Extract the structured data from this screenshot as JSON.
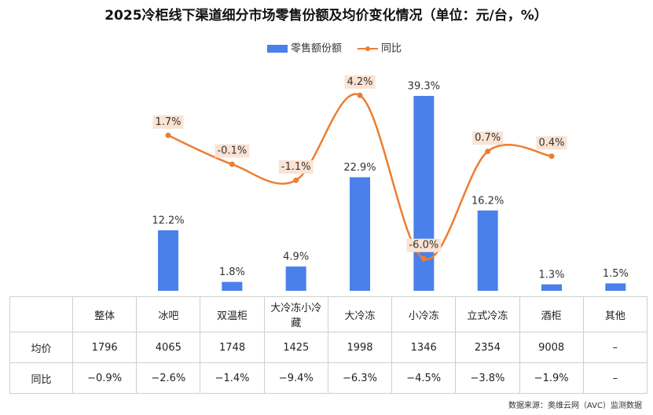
{
  "chart_data": {
    "type": "bar",
    "title": "2025冷柜线下渠道细分市场零售份额及均价变化情况（单位：元/台，%）",
    "categories": [
      "整体",
      "冰吧",
      "双温柜",
      "大冷冻小冷藏",
      "大冷冻",
      "小冷冻",
      "立式冷冻",
      "酒柜",
      "其他"
    ],
    "series": [
      {
        "name": "零售额份额",
        "color": "#4a80ea",
        "values": [
          null,
          12.2,
          1.8,
          4.9,
          22.9,
          39.3,
          16.2,
          1.3,
          1.5
        ],
        "value_labels": [
          null,
          "12.2%",
          "1.8%",
          "4.9%",
          "22.9%",
          "39.3%",
          "16.2%",
          "1.3%",
          "1.5%"
        ]
      },
      {
        "name": "同比",
        "type": "line",
        "axis": "y2",
        "color": "#ed7d31",
        "values": [
          null,
          1.7,
          -0.1,
          -1.1,
          4.2,
          -6.0,
          0.7,
          0.4,
          null
        ],
        "value_labels": [
          null,
          "1.7%",
          "-0.1%",
          "-1.1%",
          "4.2%",
          "-6.0%",
          "0.7%",
          "0.4%",
          null
        ]
      }
    ],
    "ylim": [
      0,
      42
    ],
    "y2lim": [
      -8,
      5
    ],
    "legend": "top"
  },
  "table": {
    "rows": [
      [
        "均价",
        "1796",
        "4065",
        "1748",
        "1425",
        "1998",
        "1346",
        "2354",
        "9008",
        "–"
      ],
      [
        "同比",
        "−0.9%",
        "−2.6%",
        "−1.4%",
        "−9.4%",
        "−6.3%",
        "−4.5%",
        "−3.8%",
        "−1.9%",
        "–"
      ]
    ]
  },
  "source": "数据来源：奥维云网（AVC）监测数据"
}
